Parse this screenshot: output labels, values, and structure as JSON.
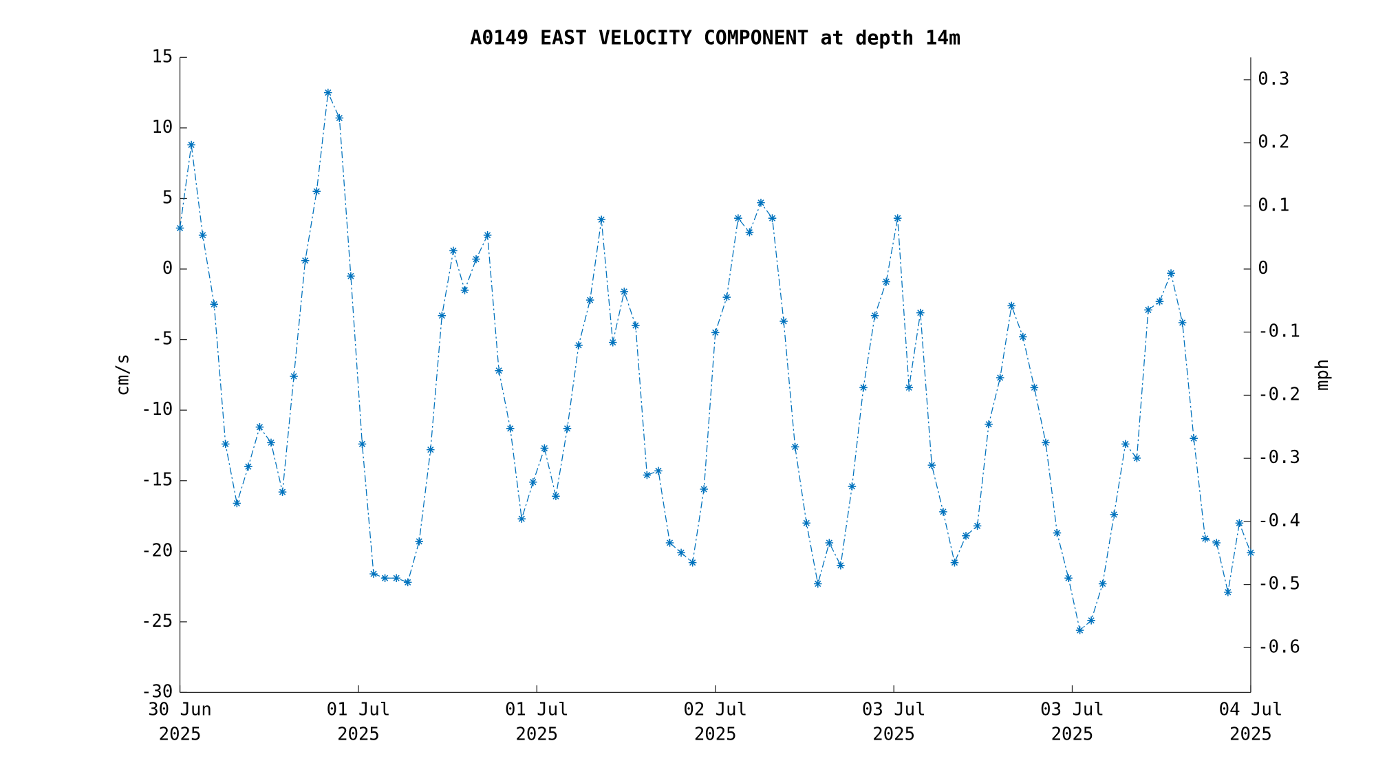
{
  "chart_data": {
    "type": "line",
    "title": "A0149 EAST VELOCITY COMPONENT at depth 14m",
    "ylabel": "cm/s",
    "y2label": "mph",
    "color": "#0072bd",
    "line_style": "dash-dot",
    "marker": "*",
    "x": [
      0,
      1,
      2,
      3,
      4,
      5,
      6,
      7,
      8,
      9,
      10,
      11,
      12,
      13,
      14,
      15,
      16,
      17,
      18,
      19,
      20,
      21,
      22,
      23,
      24,
      25,
      26,
      27,
      28,
      29,
      30,
      31,
      32,
      33,
      34,
      35,
      36,
      37,
      38,
      39,
      40,
      41,
      42,
      43,
      44,
      45,
      46,
      47,
      48,
      49,
      50,
      51,
      52,
      53,
      54,
      55,
      56,
      57,
      58,
      59,
      60,
      61,
      62,
      63,
      64,
      65,
      66,
      67,
      68,
      69,
      70,
      71,
      72,
      73,
      74,
      75,
      76,
      77,
      78,
      79,
      80,
      81,
      82,
      83,
      84,
      85,
      86,
      87,
      88,
      89,
      90,
      91,
      92,
      93,
      94
    ],
    "values": [
      2.9,
      8.8,
      2.4,
      -2.5,
      -12.4,
      -16.6,
      -14.0,
      -11.2,
      -12.3,
      -15.8,
      -7.6,
      0.6,
      5.5,
      12.5,
      10.7,
      -0.5,
      -12.4,
      -21.6,
      -21.9,
      -21.9,
      -22.2,
      -19.3,
      -12.8,
      -3.3,
      1.3,
      -1.5,
      0.7,
      2.4,
      -7.2,
      -11.3,
      -17.7,
      -15.1,
      -12.7,
      -16.1,
      -11.3,
      -5.4,
      -2.2,
      3.5,
      -5.2,
      -1.6,
      -4.0,
      -14.6,
      -14.3,
      -19.4,
      -20.1,
      -20.8,
      -15.6,
      -4.5,
      -2.0,
      3.6,
      2.6,
      4.7,
      3.6,
      -3.7,
      -12.6,
      -18.0,
      -22.3,
      -19.4,
      -21.0,
      -15.4,
      -8.4,
      -3.3,
      -0.9,
      3.6,
      -8.4,
      -3.1,
      -13.9,
      -17.2,
      -20.8,
      -18.9,
      -18.2,
      -11.0,
      -7.7,
      -2.6,
      -4.8,
      -8.4,
      -12.3,
      -18.7,
      -21.9,
      -25.6,
      -24.9,
      -22.3,
      -17.4,
      -12.4,
      -13.4,
      -2.9,
      -2.3,
      -0.3,
      -3.8,
      -12.0,
      -19.1,
      -19.4,
      -22.9,
      -18.0,
      -20.1
    ],
    "xlim": [
      0,
      94
    ],
    "xticks": [
      {
        "value": 0,
        "label": "30 Jun\n2025"
      },
      {
        "value": 15.67,
        "label": "01 Jul\n2025"
      },
      {
        "value": 31.33,
        "label": "01 Jul\n2025"
      },
      {
        "value": 47,
        "label": "02 Jul\n2025"
      },
      {
        "value": 62.67,
        "label": "03 Jul\n2025"
      },
      {
        "value": 78.33,
        "label": "03 Jul\n2025"
      },
      {
        "value": 94,
        "label": "04 Jul\n2025"
      }
    ],
    "ylim": [
      -30,
      15
    ],
    "yticks": [
      -30,
      -25,
      -20,
      -15,
      -10,
      -5,
      0,
      5,
      10,
      15
    ],
    "y2lim": [
      -0.671,
      0.3355
    ],
    "y2ticks": [
      -0.6,
      -0.5,
      -0.4,
      -0.3,
      -0.2,
      -0.1,
      0,
      0.1,
      0.2,
      0.3
    ]
  }
}
